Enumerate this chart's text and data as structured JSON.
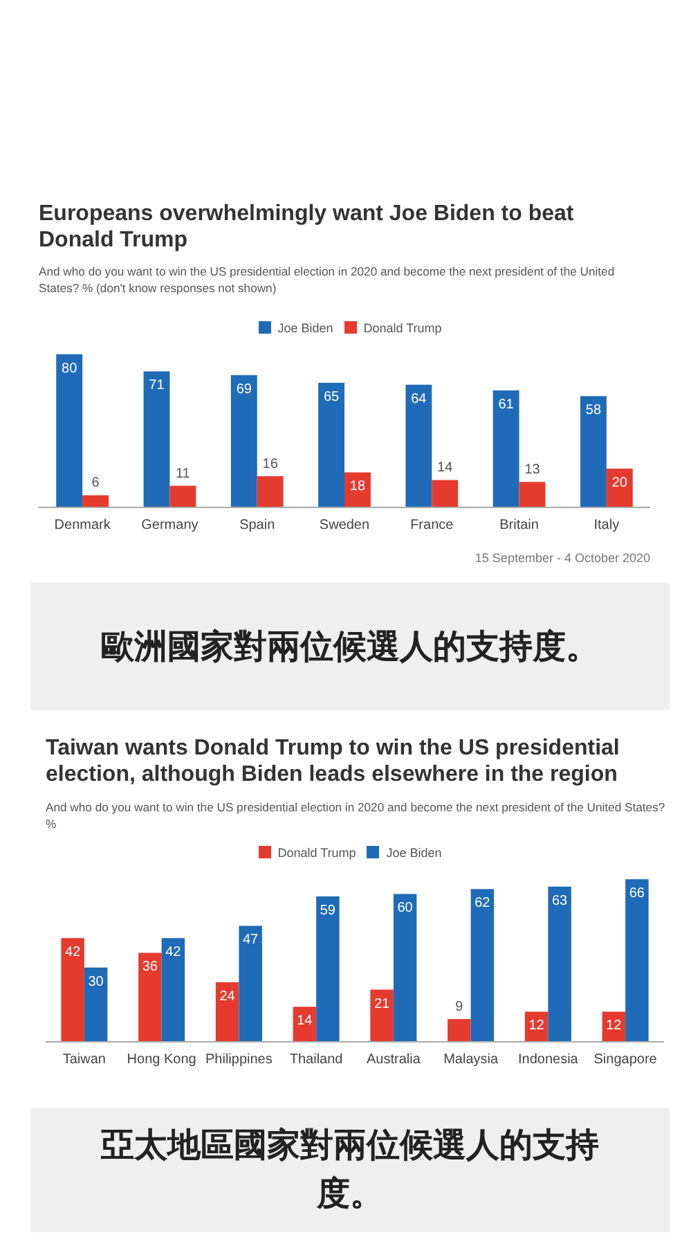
{
  "chart_data": [
    {
      "type": "bar",
      "title": "Europeans overwhelmingly want Joe Biden to beat Donald Trump",
      "subtitle": "And who do you want to win the US presidential election in 2020 and become the next president of the United States? % (don't know responses not shown)",
      "categories": [
        "Denmark",
        "Germany",
        "Spain",
        "Sweden",
        "France",
        "Britain",
        "Italy"
      ],
      "series": [
        {
          "name": "Joe Biden",
          "color": "#1f6bb7",
          "values": [
            80,
            71,
            69,
            65,
            64,
            61,
            58
          ]
        },
        {
          "name": "Donald Trump",
          "color": "#e53b2f",
          "values": [
            6,
            11,
            16,
            18,
            14,
            13,
            20
          ]
        }
      ],
      "data_labels": true,
      "legend": "top",
      "annotations": [
        "15 September - 4 October 2020",
        "歐洲國家對兩位候選人的支持度。"
      ]
    },
    {
      "type": "bar",
      "title": "Taiwan wants Donald Trump to win the US presidential election, although Biden leads elsewhere in the region",
      "subtitle": "And who do you want to win the US presidential election in 2020 and become the next president of the United States? %",
      "categories": [
        "Taiwan",
        "Hong Kong",
        "Philippines",
        "Thailand",
        "Australia",
        "Malaysia",
        "Indonesia",
        "Singapore"
      ],
      "series": [
        {
          "name": "Donald Trump",
          "color": "#e53b2f",
          "values": [
            42,
            36,
            24,
            14,
            21,
            9,
            12,
            12
          ]
        },
        {
          "name": "Joe Biden",
          "color": "#1f6bb7",
          "values": [
            30,
            42,
            47,
            59,
            60,
            62,
            63,
            66
          ]
        }
      ],
      "data_labels": true,
      "legend": "top",
      "annotations": [
        "亞太地區國家對兩位候選人的支持度。"
      ]
    }
  ]
}
